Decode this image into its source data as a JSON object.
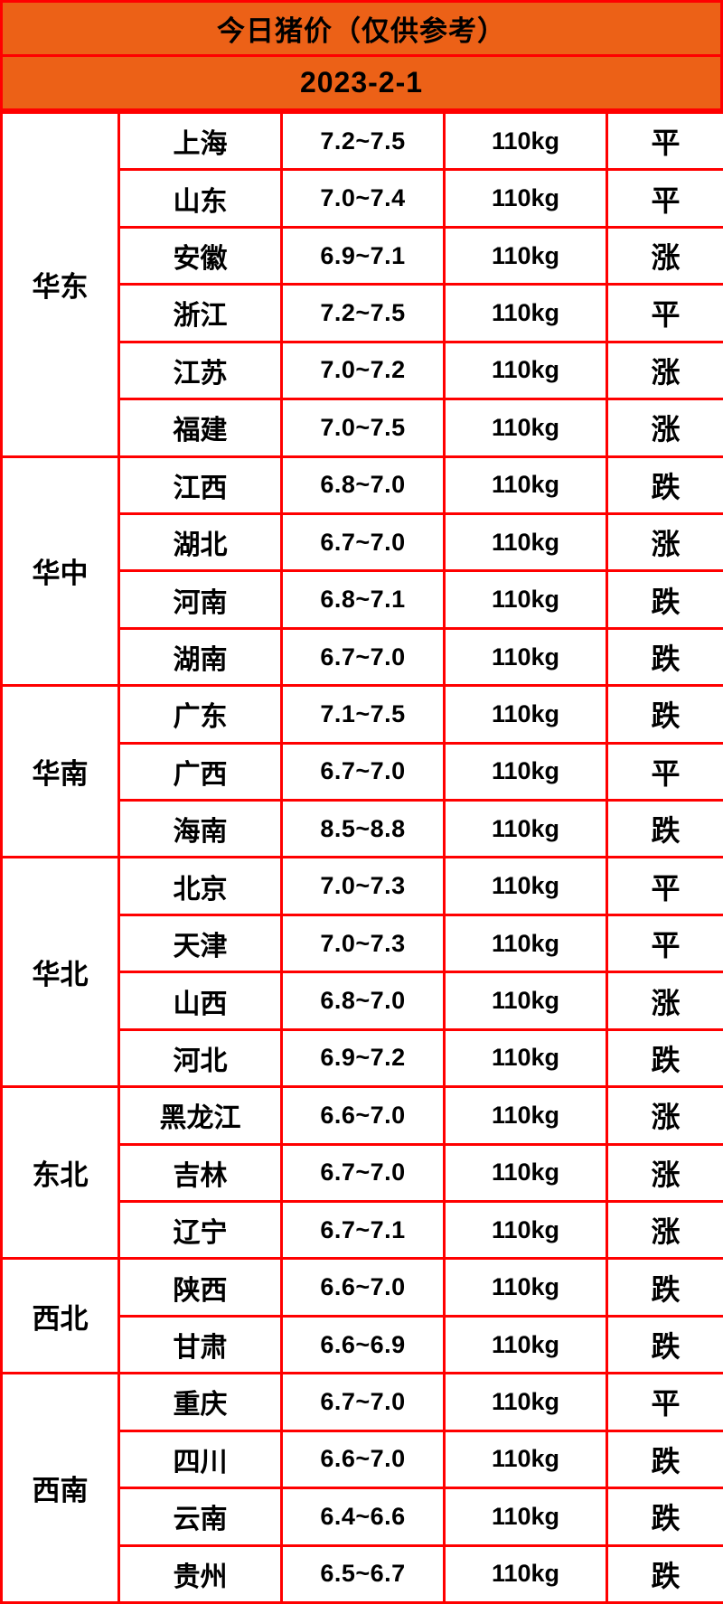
{
  "chart_data": {
    "type": "table",
    "title": "今日猪价（仅供参考）",
    "date": "2023-2-1",
    "weight_column_value": "110kg",
    "trend_legend": {
      "flat": "平",
      "up": "涨",
      "down": "跌"
    },
    "regions": [
      {
        "name": "华东",
        "rows": [
          {
            "province": "上海",
            "price": "7.2~7.5",
            "weight": "110kg",
            "trend": "平",
            "trend_type": "flat"
          },
          {
            "province": "山东",
            "price": "7.0~7.4",
            "weight": "110kg",
            "trend": "平",
            "trend_type": "flat"
          },
          {
            "province": "安徽",
            "price": "6.9~7.1",
            "weight": "110kg",
            "trend": "涨",
            "trend_type": "up"
          },
          {
            "province": "浙江",
            "price": "7.2~7.5",
            "weight": "110kg",
            "trend": "平",
            "trend_type": "flat"
          },
          {
            "province": "江苏",
            "price": "7.0~7.2",
            "weight": "110kg",
            "trend": "涨",
            "trend_type": "up"
          },
          {
            "province": "福建",
            "price": "7.0~7.5",
            "weight": "110kg",
            "trend": "涨",
            "trend_type": "up"
          }
        ]
      },
      {
        "name": "华中",
        "rows": [
          {
            "province": "江西",
            "price": "6.8~7.0",
            "weight": "110kg",
            "trend": "跌",
            "trend_type": "down"
          },
          {
            "province": "湖北",
            "price": "6.7~7.0",
            "weight": "110kg",
            "trend": "涨",
            "trend_type": "up"
          },
          {
            "province": "河南",
            "price": "6.8~7.1",
            "weight": "110kg",
            "trend": "跌",
            "trend_type": "down"
          },
          {
            "province": "湖南",
            "price": "6.7~7.0",
            "weight": "110kg",
            "trend": "跌",
            "trend_type": "down"
          }
        ]
      },
      {
        "name": "华南",
        "rows": [
          {
            "province": "广东",
            "price": "7.1~7.5",
            "weight": "110kg",
            "trend": "跌",
            "trend_type": "down"
          },
          {
            "province": "广西",
            "price": "6.7~7.0",
            "weight": "110kg",
            "trend": "平",
            "trend_type": "flat"
          },
          {
            "province": "海南",
            "price": "8.5~8.8",
            "weight": "110kg",
            "trend": "跌",
            "trend_type": "down"
          }
        ]
      },
      {
        "name": "华北",
        "rows": [
          {
            "province": "北京",
            "price": "7.0~7.3",
            "weight": "110kg",
            "trend": "平",
            "trend_type": "flat"
          },
          {
            "province": "天津",
            "price": "7.0~7.3",
            "weight": "110kg",
            "trend": "平",
            "trend_type": "flat"
          },
          {
            "province": "山西",
            "price": "6.8~7.0",
            "weight": "110kg",
            "trend": "涨",
            "trend_type": "up"
          },
          {
            "province": "河北",
            "price": "6.9~7.2",
            "weight": "110kg",
            "trend": "跌",
            "trend_type": "down"
          }
        ]
      },
      {
        "name": "东北",
        "rows": [
          {
            "province": "黑龙江",
            "price": "6.6~7.0",
            "weight": "110kg",
            "trend": "涨",
            "trend_type": "up"
          },
          {
            "province": "吉林",
            "price": "6.7~7.0",
            "weight": "110kg",
            "trend": "涨",
            "trend_type": "up"
          },
          {
            "province": "辽宁",
            "price": "6.7~7.1",
            "weight": "110kg",
            "trend": "涨",
            "trend_type": "up"
          }
        ]
      },
      {
        "name": "西北",
        "rows": [
          {
            "province": "陕西",
            "price": "6.6~7.0",
            "weight": "110kg",
            "trend": "跌",
            "trend_type": "down"
          },
          {
            "province": "甘肃",
            "price": "6.6~6.9",
            "weight": "110kg",
            "trend": "跌",
            "trend_type": "down"
          }
        ]
      },
      {
        "name": "西南",
        "rows": [
          {
            "province": "重庆",
            "price": "6.7~7.0",
            "weight": "110kg",
            "trend": "平",
            "trend_type": "flat"
          },
          {
            "province": "四川",
            "price": "6.6~7.0",
            "weight": "110kg",
            "trend": "跌",
            "trend_type": "down"
          },
          {
            "province": "云南",
            "price": "6.4~6.6",
            "weight": "110kg",
            "trend": "跌",
            "trend_type": "down"
          },
          {
            "province": "贵州",
            "price": "6.5~6.7",
            "weight": "110kg",
            "trend": "跌",
            "trend_type": "down"
          }
        ]
      }
    ]
  },
  "colors": {
    "banner_bg": "#EC6117",
    "border": "#FF0000",
    "trend_up": "#FF0000",
    "trend_down": "#32C832",
    "trend_flat": "#000000"
  }
}
